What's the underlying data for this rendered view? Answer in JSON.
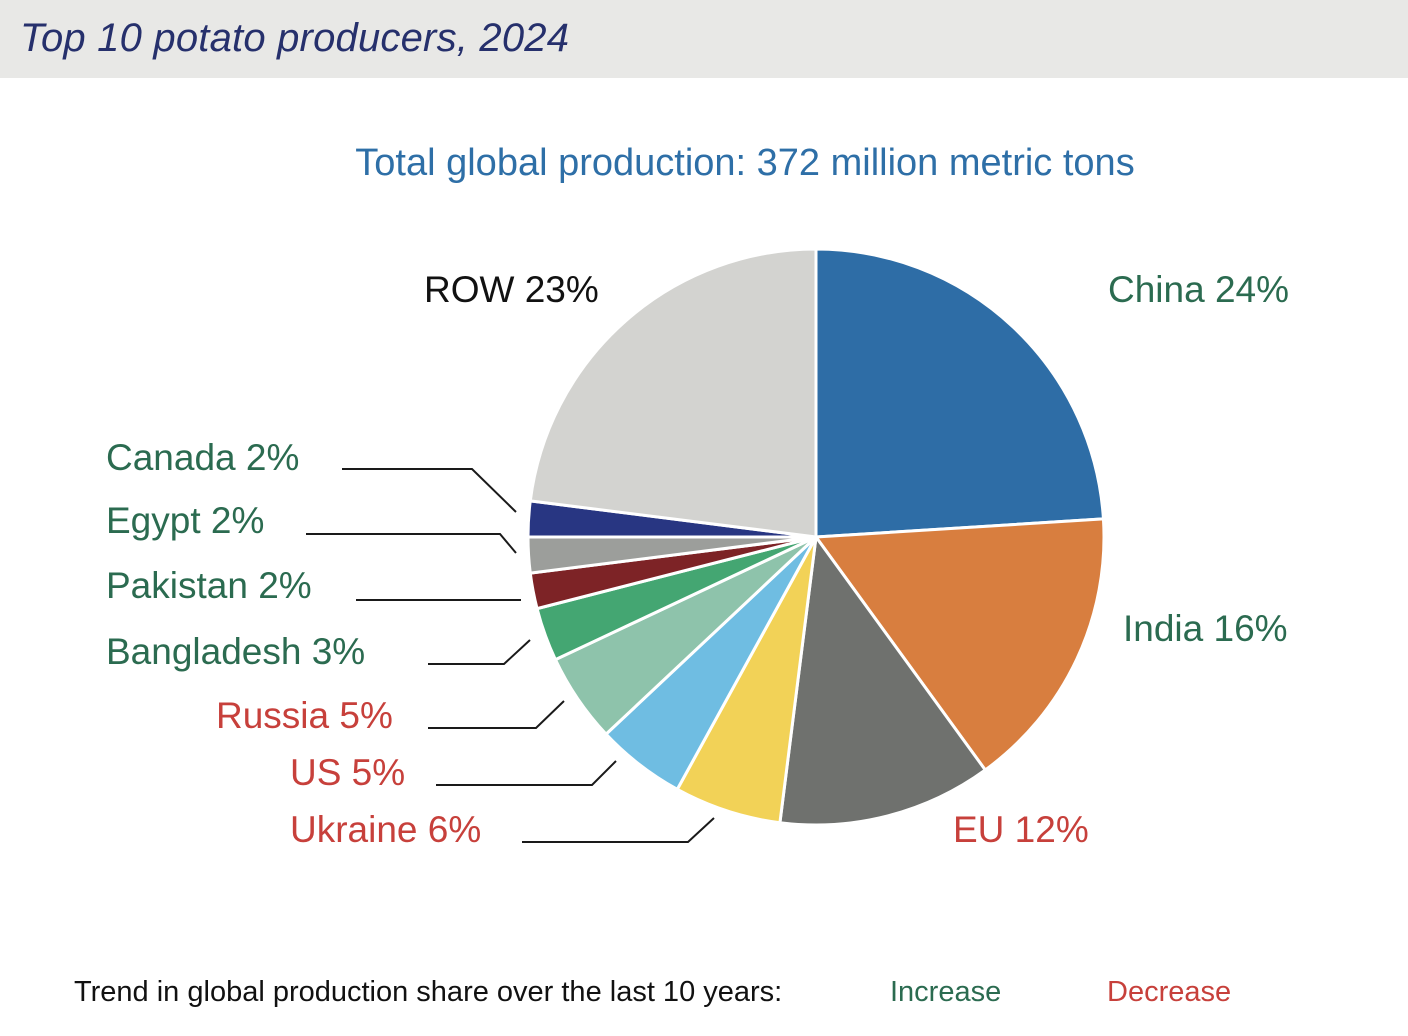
{
  "header": {
    "title": "Top 10 potato producers, 2024"
  },
  "chart_data": {
    "type": "pie",
    "title": "Top 10 potato producers, 2024",
    "subtitle": "Total global production: 372 million metric tons",
    "unit": "%",
    "slices": [
      {
        "name": "China",
        "value": 24,
        "label": "China 24%",
        "color": "#2e6da6",
        "trend": "increase"
      },
      {
        "name": "India",
        "value": 16,
        "label": "India 16%",
        "color": "#d87e3f",
        "trend": "increase"
      },
      {
        "name": "EU",
        "value": 12,
        "label": "EU 12%",
        "color": "#6f716e",
        "trend": "decrease"
      },
      {
        "name": "Ukraine",
        "value": 6,
        "label": "Ukraine 6%",
        "color": "#f2d257",
        "trend": "decrease"
      },
      {
        "name": "US",
        "value": 5,
        "label": "US 5%",
        "color": "#6fbde2",
        "trend": "decrease"
      },
      {
        "name": "Russia",
        "value": 5,
        "label": "Russia 5%",
        "color": "#8ec3ab",
        "trend": "decrease"
      },
      {
        "name": "Bangladesh",
        "value": 3,
        "label": "Bangladesh 3%",
        "color": "#44a672",
        "trend": "increase"
      },
      {
        "name": "Pakistan",
        "value": 2,
        "label": "Pakistan 2%",
        "color": "#7d2326",
        "trend": "increase"
      },
      {
        "name": "Egypt",
        "value": 2,
        "label": "Egypt 2%",
        "color": "#9c9e9b",
        "trend": "increase"
      },
      {
        "name": "Canada",
        "value": 2,
        "label": "Canada 2%",
        "color": "#283682",
        "trend": "increase"
      },
      {
        "name": "ROW",
        "value": 23,
        "label": "ROW 23%",
        "color": "#d3d3d0",
        "trend": "none"
      }
    ],
    "trend_colors": {
      "increase": "#2b6b50",
      "decrease": "#c7403b",
      "none": "#111111"
    },
    "legend": {
      "title": "Trend in global production share over the last 10 years:",
      "increase_label": "Increase",
      "decrease_label": "Decrease"
    }
  }
}
